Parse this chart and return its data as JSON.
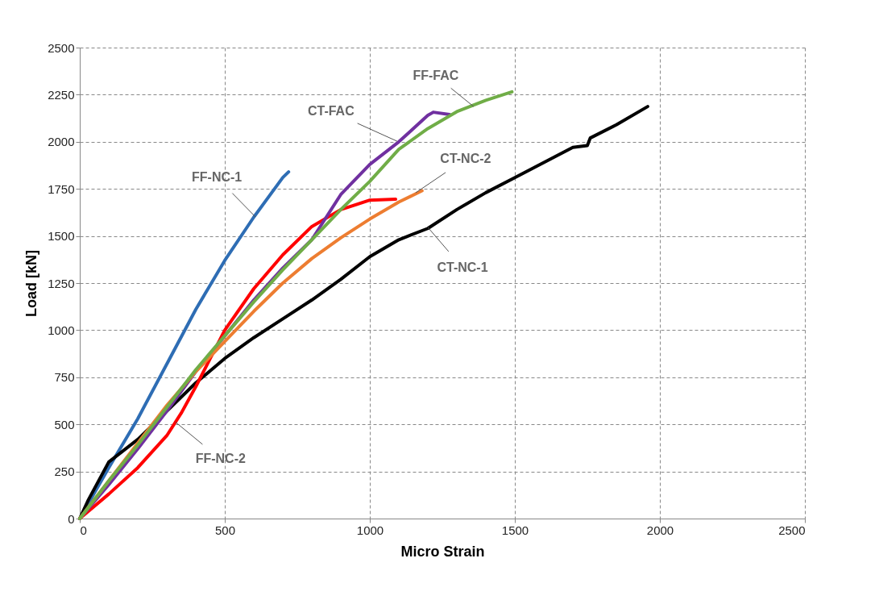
{
  "chart_data": {
    "type": "line",
    "xlabel": "Micro Strain",
    "ylabel": "Load [kN]",
    "xlim": [
      0,
      2500
    ],
    "xticks": [
      0,
      500,
      1000,
      1500,
      2000,
      2500
    ],
    "ylim": [
      0,
      2500
    ],
    "yticks": [
      0,
      250,
      500,
      750,
      1000,
      1250,
      1500,
      1750,
      2000,
      2250,
      2500
    ],
    "grid": true,
    "marker": "none",
    "line_style": "solid",
    "series": [
      {
        "color": "#2e6db4",
        "x": [
          0,
          100,
          200,
          300,
          400,
          500,
          600,
          700,
          720
        ],
        "values": [
          0,
          270,
          530,
          820,
          1110,
          1370,
          1600,
          1810,
          1840
        ]
      },
      {
        "color": "#000000",
        "x": [
          0,
          30,
          100,
          200,
          300,
          400,
          500,
          600,
          700,
          800,
          900,
          1000,
          1100,
          1200,
          1300,
          1400,
          1500,
          1600,
          1700,
          1750,
          1760,
          1850,
          1958
        ],
        "values": [
          0,
          100,
          300,
          420,
          570,
          720,
          850,
          960,
          1060,
          1160,
          1270,
          1390,
          1480,
          1540,
          1640,
          1730,
          1810,
          1890,
          1970,
          1980,
          2020,
          2090,
          2187
        ]
      },
      {
        "color": "#ff0000",
        "x": [
          0,
          100,
          200,
          300,
          350,
          400,
          450,
          500,
          600,
          700,
          800,
          900,
          1000,
          1089
        ],
        "values": [
          0,
          130,
          270,
          440,
          560,
          700,
          850,
          1000,
          1220,
          1400,
          1550,
          1640,
          1690,
          1695
        ]
      },
      {
        "color": "#7030a0",
        "x": [
          0,
          100,
          200,
          300,
          400,
          500,
          600,
          700,
          800,
          900,
          1000,
          1100,
          1200,
          1219,
          1275
        ],
        "values": [
          0,
          180,
          370,
          570,
          780,
          970,
          1160,
          1330,
          1480,
          1720,
          1880,
          2000,
          2140,
          2157,
          2145
        ]
      },
      {
        "color": "#ed7d31",
        "x": [
          0,
          100,
          200,
          300,
          400,
          500,
          600,
          700,
          800,
          900,
          1000,
          1100,
          1180
        ],
        "values": [
          0,
          200,
          400,
          600,
          780,
          940,
          1100,
          1250,
          1380,
          1490,
          1590,
          1680,
          1740
        ]
      },
      {
        "color": "#70ad47",
        "x": [
          0,
          100,
          200,
          300,
          400,
          500,
          600,
          700,
          800,
          900,
          1000,
          1100,
          1200,
          1300,
          1400,
          1490
        ],
        "values": [
          0,
          200,
          390,
          590,
          790,
          970,
          1150,
          1320,
          1480,
          1640,
          1790,
          1960,
          2070,
          2160,
          2220,
          2265
        ]
      }
    ],
    "annotations": [
      {
        "text": "FF-NC-1",
        "x": 606,
        "y": 1601
      },
      {
        "text": "FF-NC-2",
        "x": 330,
        "y": 512
      },
      {
        "text": "CT-FAC",
        "x": 1094,
        "y": 2003
      },
      {
        "text": "FF-FAC",
        "x": 1358,
        "y": 2187
      },
      {
        "text": "CT-NC-2",
        "x": 1158,
        "y": 1729
      },
      {
        "text": "CT-NC-1",
        "x": 1200,
        "y": 1546
      }
    ]
  }
}
